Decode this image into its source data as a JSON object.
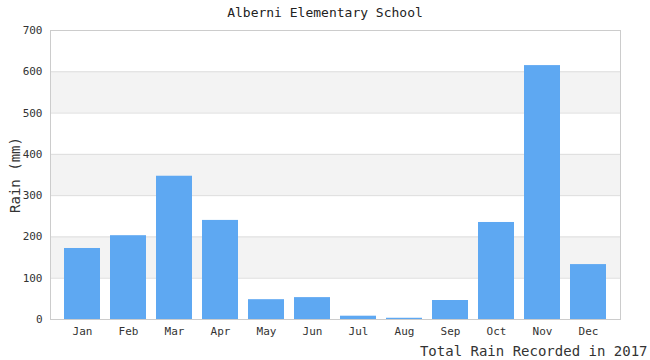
{
  "chart_data": {
    "type": "bar",
    "title": "Alberni Elementary School",
    "ylabel": "Rain (mm)",
    "xlabel": "Total Rain Recorded in 2017",
    "categories": [
      "Jan",
      "Feb",
      "Mar",
      "Apr",
      "May",
      "Jun",
      "Jul",
      "Aug",
      "Sep",
      "Oct",
      "Nov",
      "Dec"
    ],
    "values": [
      172,
      203,
      347,
      240,
      48,
      53,
      8,
      3,
      46,
      235,
      615,
      133
    ],
    "color": "#5ea8f2",
    "ylim": [
      0,
      700
    ],
    "yticks": [
      0,
      100,
      200,
      300,
      400,
      500,
      600,
      700
    ],
    "grid": true
  }
}
